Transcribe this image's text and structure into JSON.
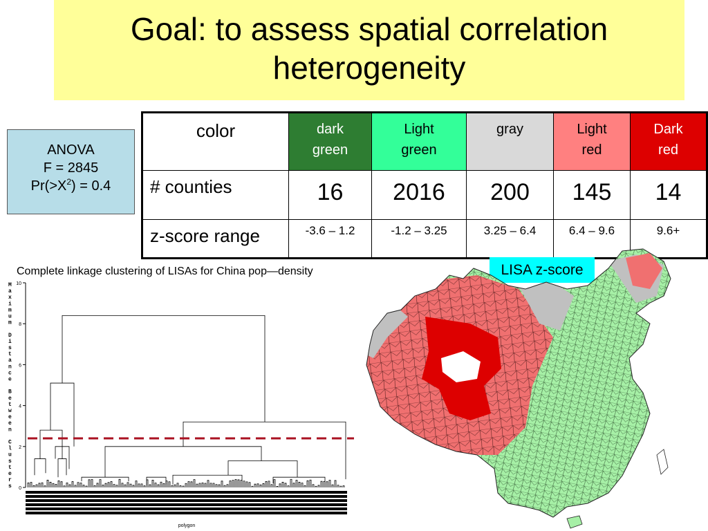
{
  "title": "Goal: to assess spatial correlation heterogeneity",
  "anova": {
    "line1": "ANOVA",
    "line2": "F = 2845",
    "line3_pre": "Pr(>X",
    "line3_sup": "2",
    "line3_post": ") = 0.4"
  },
  "table": {
    "row_labels": [
      "color",
      "# counties",
      "z-score range"
    ],
    "columns": [
      {
        "color_name": [
          "dark",
          "green"
        ],
        "bg": "#2e7d32",
        "fg": "#ffffff",
        "count": "16",
        "range": "-3.6 – 1.2"
      },
      {
        "color_name": [
          "Light",
          "green"
        ],
        "bg": "#33ff99",
        "fg": "#000000",
        "count": "2016",
        "range": "-1.2 – 3.25"
      },
      {
        "color_name": [
          "gray",
          ""
        ],
        "bg": "#d9d9d9",
        "fg": "#000000",
        "count": "200",
        "range": "3.25 – 6.4"
      },
      {
        "color_name": [
          "Light",
          "red"
        ],
        "bg": "#ff8080",
        "fg": "#000000",
        "count": "145",
        "range": "6.4 – 9.6"
      },
      {
        "color_name": [
          "Dark",
          "red"
        ],
        "bg": "#dd0000",
        "fg": "#ffffff",
        "count": "14",
        "range": "9.6+"
      }
    ]
  },
  "lisa_label": "LISA z-score",
  "dendrogram": {
    "title": "Complete linkage clustering of LISAs for China pop—density",
    "ylabel": "Maximum Distance Between Clusters",
    "xlabel": "polygon",
    "ticks": [
      "0",
      "2",
      "4",
      "6",
      "8",
      "10"
    ],
    "cutoff": 2.4,
    "cutoff_color": "#aa1122"
  },
  "map_colors": {
    "light_green": "#a6f0a6",
    "light_red": "#f07070",
    "dark_red": "#dd0000",
    "gray": "#c0c0c0"
  }
}
